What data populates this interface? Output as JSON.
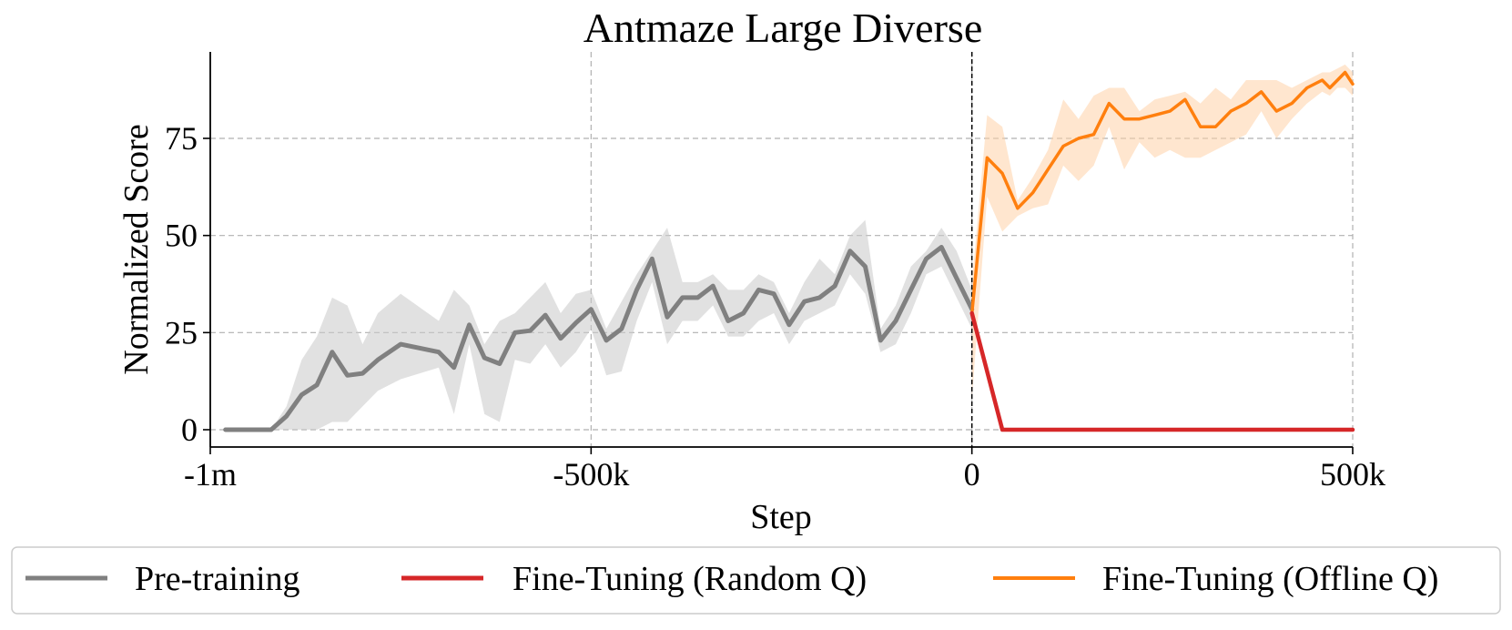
{
  "chart_data": {
    "type": "line",
    "title": "Antmaze Large Diverse",
    "xlabel": "Step",
    "ylabel": "Normalized Score",
    "xlim": [
      -1000000,
      500000
    ],
    "ylim": [
      -4.5,
      96
    ],
    "xticks": [
      {
        "value": -1000000,
        "label": "-1m"
      },
      {
        "value": -500000,
        "label": "-500k"
      },
      {
        "value": 0,
        "label": "0"
      },
      {
        "value": 500000,
        "label": "500k"
      }
    ],
    "yticks": [
      {
        "value": 0,
        "label": "0"
      },
      {
        "value": 25,
        "label": "25"
      },
      {
        "value": 50,
        "label": "50"
      },
      {
        "value": 75,
        "label": "75"
      }
    ],
    "grid": true,
    "vline": 0,
    "legend_position": "bottom",
    "series": [
      {
        "name": "Pre-training",
        "color": "#808080",
        "band_color": "#c8c8c8",
        "x": [
          -980000,
          -960000,
          -940000,
          -920000,
          -900000,
          -880000,
          -860000,
          -840000,
          -820000,
          -800000,
          -780000,
          -750000,
          -700000,
          -680000,
          -660000,
          -640000,
          -620000,
          -600000,
          -580000,
          -560000,
          -540000,
          -520000,
          -500000,
          -480000,
          -460000,
          -440000,
          -420000,
          -400000,
          -380000,
          -360000,
          -340000,
          -320000,
          -300000,
          -280000,
          -260000,
          -240000,
          -220000,
          -200000,
          -180000,
          -160000,
          -140000,
          -120000,
          -100000,
          -80000,
          -60000,
          -40000,
          -20000,
          0
        ],
        "y": [
          0,
          0,
          0,
          0,
          3.5,
          9,
          11.5,
          20,
          14,
          14.5,
          18,
          22,
          20,
          16,
          27,
          18.5,
          17,
          25,
          25.5,
          29.5,
          23.5,
          27.5,
          31,
          23,
          26,
          36,
          44,
          29,
          34,
          34,
          37,
          28,
          30,
          36,
          35,
          27,
          33,
          34,
          37,
          46,
          42,
          23,
          28,
          36,
          44,
          47,
          39,
          31
        ],
        "lower": [
          0,
          0,
          0,
          0,
          0,
          0,
          0,
          2,
          2,
          6,
          10,
          13,
          16,
          4,
          22,
          4,
          2,
          18,
          17,
          22,
          16,
          20,
          26,
          14,
          15,
          28,
          38,
          22,
          28,
          28,
          32,
          24,
          24,
          28,
          30,
          22,
          28,
          30,
          32,
          40,
          35,
          20,
          22,
          30,
          40,
          42,
          34,
          26
        ],
        "upper": [
          0,
          0,
          0,
          0,
          6,
          18,
          24,
          34,
          32,
          22,
          30,
          35,
          28,
          36,
          32,
          22,
          28,
          30,
          34,
          38,
          30,
          35,
          36,
          26,
          33,
          40,
          46,
          52,
          38,
          38,
          40,
          36,
          36,
          40,
          38,
          30,
          38,
          44,
          40,
          50,
          54,
          26,
          32,
          42,
          46,
          52,
          46,
          36
        ]
      },
      {
        "name": "Fine-Tuning (Random Q)",
        "color": "#d62728",
        "x": [
          0,
          40000,
          80000,
          200000,
          300000,
          400000,
          500000
        ],
        "y": [
          30,
          0,
          0,
          0,
          0,
          0,
          0
        ]
      },
      {
        "name": "Fine-Tuning (Offline Q)",
        "color": "#ff7f0e",
        "band_color": "#ffd2a8",
        "x": [
          0,
          20000,
          40000,
          60000,
          80000,
          100000,
          120000,
          140000,
          160000,
          180000,
          200000,
          220000,
          240000,
          260000,
          280000,
          300000,
          320000,
          340000,
          360000,
          380000,
          400000,
          420000,
          440000,
          460000,
          470000,
          480000,
          490000,
          500000
        ],
        "y": [
          30,
          70,
          66,
          57,
          61,
          67,
          73,
          75,
          76,
          84,
          80,
          80,
          81,
          82,
          85,
          78,
          78,
          82,
          84,
          87,
          82,
          84,
          88,
          90,
          88,
          90,
          92,
          89
        ],
        "lower": [
          8,
          60,
          51,
          55,
          57,
          58,
          68,
          64,
          68,
          78,
          67,
          74,
          70,
          72,
          70,
          70,
          72,
          74,
          76,
          82,
          75,
          80,
          84,
          87,
          86,
          88,
          88,
          86
        ],
        "upper": [
          38,
          81,
          78,
          59,
          65,
          72,
          85,
          80,
          86,
          88,
          88,
          82,
          85,
          86,
          87,
          84,
          88,
          85,
          90,
          90,
          90,
          88,
          90,
          92,
          92,
          93,
          94,
          92
        ]
      }
    ]
  }
}
